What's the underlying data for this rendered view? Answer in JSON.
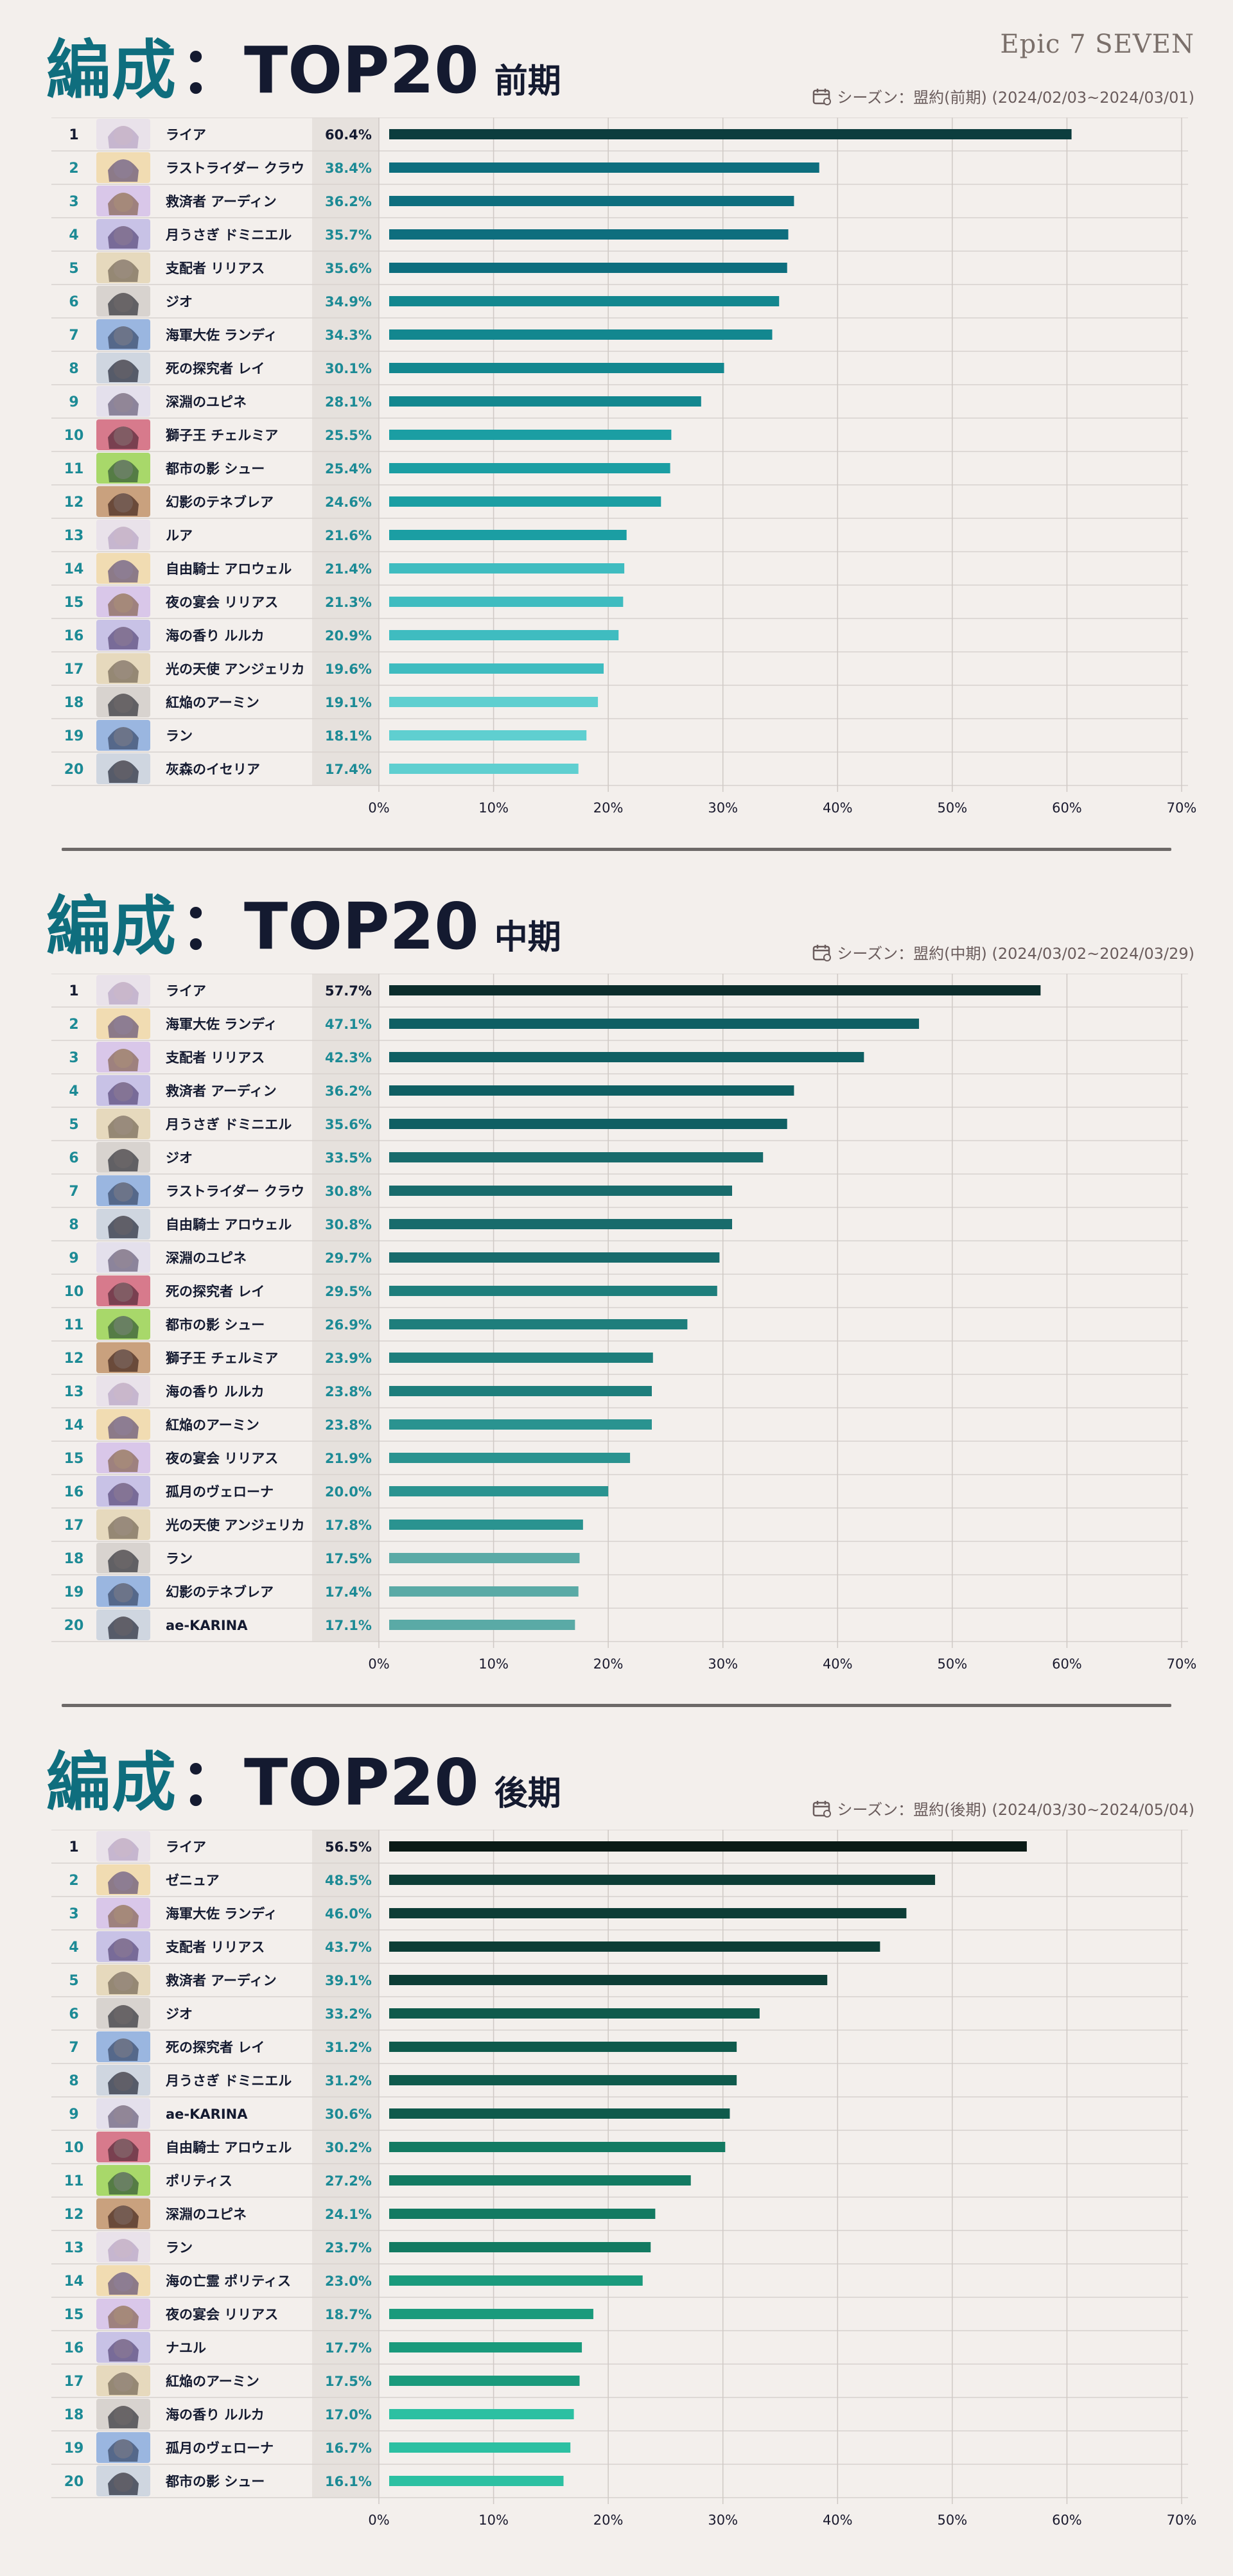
{
  "logo_text": "Epic 7 SEVEN",
  "colors": {
    "title_accent": "#0f6e7e",
    "title_dark": "#141a30",
    "background": "#f3efec"
  },
  "sections": [
    {
      "title_main": "編成",
      "title_colon": "：TOP20",
      "title_period": "前期",
      "season": "シーズン：盟約(前期) (2024/02/03~2024/03/01)"
    },
    {
      "title_main": "編成",
      "title_colon": "：TOP20",
      "title_period": "中期",
      "season": "シーズン：盟約(中期) (2024/03/02~2024/03/29)"
    },
    {
      "title_main": "編成",
      "title_colon": "：TOP20",
      "title_period": "後期",
      "season": "シーズン：盟約(後期) (2024/03/30~2024/05/04)"
    }
  ],
  "chart_data": [
    {
      "type": "bar",
      "orientation": "horizontal",
      "xlim": [
        0,
        70
      ],
      "xticks": [
        "0%",
        "10%",
        "20%",
        "30%",
        "40%",
        "50%",
        "60%",
        "70%"
      ],
      "grid": true,
      "bar_colors": [
        "#0c3d3e",
        "#0e6e7e",
        "#13878f",
        "#1b9ea3",
        "#3fbcc0",
        "#5fcfd0"
      ],
      "categories": [
        "ライア",
        "ラストライダー クラウ",
        "救済者 アーディン",
        "月うさぎ ドミニエル",
        "支配者 リリアス",
        "ジオ",
        "海軍大佐 ランディ",
        "死の探究者 レイ",
        "深淵のユピネ",
        "獅子王 チェルミア",
        "都市の影 シュー",
        "幻影のテネブレア",
        "ルア",
        "自由騎士 アロウェル",
        "夜の宴会 リリアス",
        "海の香り ルルカ",
        "光の天使 アンジェリカ",
        "紅焔のアーミン",
        "ラン",
        "灰森のイセリア"
      ],
      "values": [
        60.4,
        38.4,
        36.2,
        35.7,
        35.6,
        34.9,
        34.3,
        30.1,
        28.1,
        25.5,
        25.4,
        24.6,
        21.6,
        21.4,
        21.3,
        20.9,
        19.6,
        19.1,
        18.1,
        17.4
      ],
      "labels": [
        "60.4%",
        "38.4%",
        "36.2%",
        "35.7%",
        "35.6%",
        "34.9%",
        "34.3%",
        "30.1%",
        "28.1%",
        "25.5%",
        "25.4%",
        "24.6%",
        "21.6%",
        "21.4%",
        "21.3%",
        "20.9%",
        "19.6%",
        "19.1%",
        "18.1%",
        "17.4%"
      ]
    },
    {
      "type": "bar",
      "orientation": "horizontal",
      "xlim": [
        0,
        70
      ],
      "xticks": [
        "0%",
        "10%",
        "20%",
        "30%",
        "40%",
        "50%",
        "60%",
        "70%"
      ],
      "grid": true,
      "bar_colors": [
        "#0c2d2c",
        "#0f5f63",
        "#186b6c",
        "#1e7e7c",
        "#2a9390",
        "#5aaaa6"
      ],
      "categories": [
        "ライア",
        "海軍大佐 ランディ",
        "支配者 リリアス",
        "救済者 アーディン",
        "月うさぎ ドミニエル",
        "ジオ",
        "ラストライダー クラウ",
        "自由騎士 アロウェル",
        "深淵のユピネ",
        "死の探究者 レイ",
        "都市の影 シュー",
        "獅子王 チェルミア",
        "海の香り ルルカ",
        "紅焔のアーミン",
        "夜の宴会 リリアス",
        "孤月のヴェローナ",
        "光の天使 アンジェリカ",
        "ラン",
        "幻影のテネブレア",
        "ae-KARINA"
      ],
      "values": [
        57.7,
        47.1,
        42.3,
        36.2,
        35.6,
        33.5,
        30.8,
        30.8,
        29.7,
        29.5,
        26.9,
        23.9,
        23.8,
        23.8,
        21.9,
        20.0,
        17.8,
        17.5,
        17.4,
        17.1
      ],
      "labels": [
        "57.7%",
        "47.1%",
        "42.3%",
        "36.2%",
        "35.6%",
        "33.5%",
        "30.8%",
        "30.8%",
        "29.7%",
        "29.5%",
        "26.9%",
        "23.9%",
        "23.8%",
        "23.8%",
        "21.9%",
        "20.0%",
        "17.8%",
        "17.5%",
        "17.4%",
        "17.1%"
      ]
    },
    {
      "type": "bar",
      "orientation": "horizontal",
      "xlim": [
        0,
        70
      ],
      "xticks": [
        "0%",
        "10%",
        "20%",
        "30%",
        "40%",
        "50%",
        "60%",
        "70%"
      ],
      "grid": true,
      "bar_colors": [
        "#0a1a16",
        "#0d3d36",
        "#0f5a4c",
        "#137a62",
        "#1a9a7c",
        "#2cc0a2"
      ],
      "categories": [
        "ライア",
        "ゼニュア",
        "海軍大佐 ランディ",
        "支配者 リリアス",
        "救済者 アーディン",
        "ジオ",
        "死の探究者 レイ",
        "月うさぎ ドミニエル",
        "ae-KARINA",
        "自由騎士 アロウェル",
        "ポリティス",
        "深淵のユピネ",
        "ラン",
        "海の亡霊 ポリティス",
        "夜の宴会 リリアス",
        "ナユル",
        "紅焔のアーミン",
        "海の香り ルルカ",
        "孤月のヴェローナ",
        "都市の影 シュー"
      ],
      "values": [
        56.5,
        48.5,
        46.0,
        43.7,
        39.1,
        33.2,
        31.2,
        31.2,
        30.6,
        30.2,
        27.2,
        24.1,
        23.7,
        23.0,
        18.7,
        17.7,
        17.5,
        17.0,
        16.7,
        16.1
      ],
      "labels": [
        "56.5%",
        "48.5%",
        "46.0%",
        "43.7%",
        "39.1%",
        "33.2%",
        "31.2%",
        "31.2%",
        "30.6%",
        "30.2%",
        "27.2%",
        "24.1%",
        "23.7%",
        "23.0%",
        "18.7%",
        "17.7%",
        "17.5%",
        "17.0%",
        "16.7%",
        "16.1%"
      ]
    }
  ]
}
